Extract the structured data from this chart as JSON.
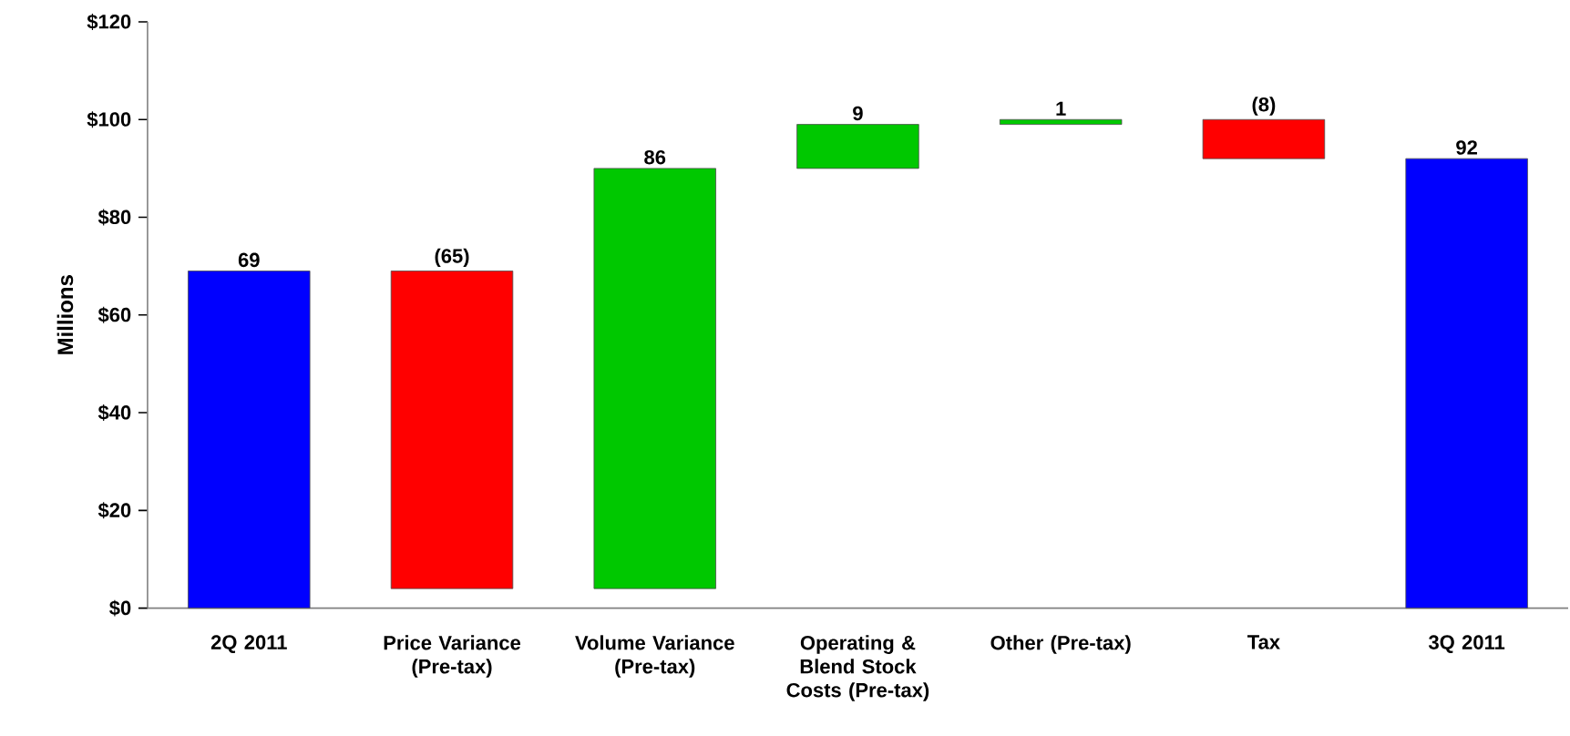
{
  "chart_data": {
    "type": "bar",
    "ylabel": "Millions",
    "categories": [
      "2Q 2011",
      "Price Variance (Pre-tax)",
      "Volume Variance (Pre-tax)",
      "Operating & Blend Stock Costs (Pre-tax)",
      "Other (Pre-tax)",
      "Tax",
      "3Q 2011"
    ],
    "values": [
      69,
      -65,
      86,
      9,
      1,
      -8,
      92
    ],
    "base": [
      0,
      69,
      4,
      90,
      99,
      100,
      0
    ],
    "colors": [
      "#0000ff",
      "#ff0000",
      "#00c800",
      "#00c800",
      "#00c800",
      "#ff0000",
      "#0000ff"
    ],
    "value_labels": [
      "69",
      "(65)",
      "86",
      "9",
      "1",
      "(8)",
      "92"
    ],
    "ylim": [
      0,
      120
    ],
    "yticks": [
      {
        "value": 0,
        "label": "$0"
      },
      {
        "value": 20,
        "label": "$20"
      },
      {
        "value": 40,
        "label": "$40"
      },
      {
        "value": 60,
        "label": "$60"
      },
      {
        "value": 80,
        "label": "$80"
      },
      {
        "value": 100,
        "label": "$100"
      },
      {
        "value": 120,
        "label": "$120"
      }
    ]
  }
}
